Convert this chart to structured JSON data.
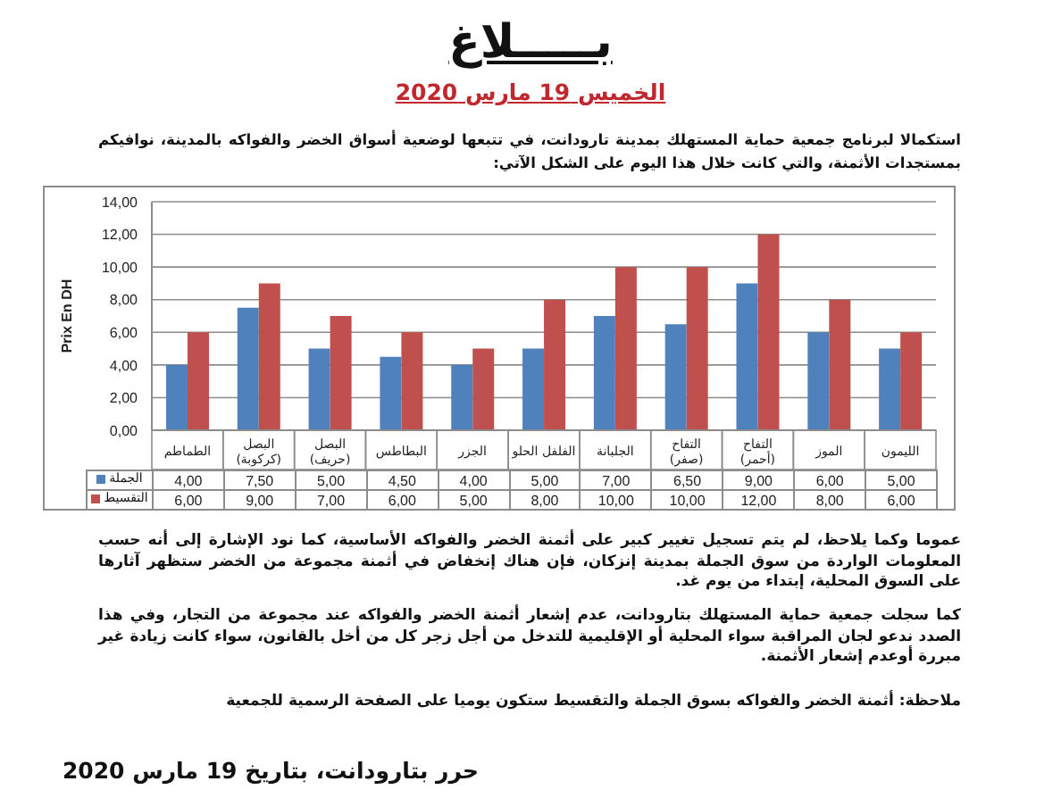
{
  "chart_data": {
    "type": "bar",
    "title": "بـــــلاغ",
    "subtitle": "الخميس 19 مارس 2020",
    "ylabel": "Prix En DH",
    "categories": [
      "الطماطم",
      "البصل (كركوبة)",
      "البصل (حريف)",
      "البطاطس",
      "الجزر",
      "الفلفل الحلو",
      "الجلبانة",
      "التفاح (صفر)",
      "التفاح (أحمر)",
      "الموز",
      "الليمون"
    ],
    "series": [
      {
        "name": "الجملة",
        "color": "#4f81bd",
        "values": [
          4,
          7.5,
          5,
          4.5,
          4,
          5,
          7,
          6.5,
          9,
          6,
          5
        ],
        "value_labels": [
          "4,00",
          "7,50",
          "5,00",
          "4,50",
          "4,00",
          "5,00",
          "7,00",
          "6,50",
          "9,00",
          "6,00",
          "5,00"
        ]
      },
      {
        "name": "التقسيط",
        "color": "#c0504d",
        "values": [
          6,
          9,
          7,
          6,
          5,
          8,
          10,
          10,
          12,
          8,
          6
        ],
        "value_labels": [
          "6,00",
          "9,00",
          "7,00",
          "6,00",
          "5,00",
          "8,00",
          "10,00",
          "10,00",
          "12,00",
          "8,00",
          "6,00"
        ]
      }
    ],
    "ylim": [
      0,
      14
    ],
    "yticks": [
      {
        "value": 0,
        "label": "0,00"
      },
      {
        "value": 2,
        "label": "2,00"
      },
      {
        "value": 4,
        "label": "4,00"
      },
      {
        "value": 6,
        "label": "6,00"
      },
      {
        "value": 8,
        "label": "8,00"
      },
      {
        "value": 10,
        "label": "10,00"
      },
      {
        "value": 12,
        "label": "12,00"
      },
      {
        "value": 14,
        "label": "14,00"
      }
    ],
    "grid": "y",
    "legend": "bottom",
    "annotations": [
      "استكمالا لبرنامج جمعية حماية المستهلك بمدينة تارودانت، في تتبعها لوضعية أسواق الخضر والفواكه بالمدينة، نوافيكم بمستجدات الأثمنة، والتي كانت خلال هذا اليوم على الشكل الآتي:",
      "عموما وكما يلاحظ، لم يتم تسجيل تغيير كبير على أثمنة الخضر والفواكه الأساسية، كما نود الإشارة إلى أنه حسب المعلومات الواردة من سوق الجملة بمدينة إنزكان، فإن هناك إنخفاض في أثمنة مجموعة من الخضر ستظهر آثارها على السوق المحلية، إبتداء من يوم غد.",
      "كما سجلت جمعية حماية المستهلك بتارودانت، عدم إشعار أثمنة الخضر والفواكه عند مجموعة من التجار، وفي هذا الصدد ندعو لجان المراقبة سواء المحلية أو الإقليمية للتدخل من أجل زجر كل من أخل بالقانون، سواء كانت زيادة غير مبررة أوعدم إشعار الأثمنة.",
      "ملاحظة: أثمنة الخضر والفواكه بسوق الجملة والتقسيط ستكون يوميا على الصفحة الرسمية للجمعية",
      "حرر بتارودانت، بتاريخ 19 مارس 2020"
    ]
  }
}
